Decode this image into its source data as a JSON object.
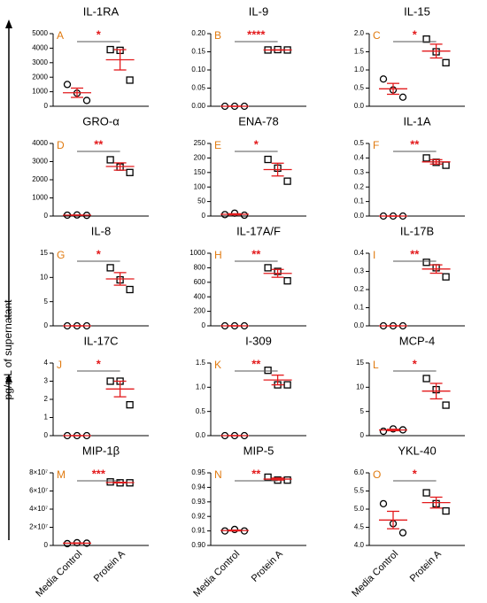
{
  "y_label": "pg/mL of supernatant",
  "chart_data": [
    {
      "type": "scatter",
      "title": "IL-1RA",
      "label": "A",
      "significance": "*",
      "values": [
        [
          1500,
          900,
          400
        ],
        [
          3900,
          3850,
          1800
        ]
      ],
      "mean": [
        930,
        3200
      ],
      "sem": [
        320,
        700
      ],
      "ylim": [
        0,
        5000
      ],
      "yticks": [
        0,
        1000,
        2000,
        3000,
        4000,
        5000
      ]
    },
    {
      "type": "scatter",
      "title": "IL-9",
      "label": "B",
      "significance": "****",
      "values": [
        [
          0,
          0,
          0
        ],
        [
          0.155,
          0.156,
          0.155
        ]
      ],
      "mean": [
        0,
        0.155
      ],
      "sem": [
        0,
        0.0003
      ],
      "ylim": [
        0,
        0.2
      ],
      "yticks": [
        {
          "value": 0,
          "label": "0.00"
        },
        {
          "value": 0.05,
          "label": "0.05"
        },
        {
          "value": 0.1,
          "label": "0.10"
        },
        {
          "value": 0.15,
          "label": "0.15"
        },
        {
          "value": 0.2,
          "label": "0.20"
        }
      ]
    },
    {
      "type": "scatter",
      "title": "IL-15",
      "label": "C",
      "significance": "*",
      "values": [
        [
          0.75,
          0.45,
          0.25
        ],
        [
          1.85,
          1.5,
          1.2
        ]
      ],
      "mean": [
        0.48,
        1.52
      ],
      "sem": [
        0.15,
        0.19
      ],
      "ylim": [
        0,
        2
      ],
      "yticks": [
        {
          "value": 0,
          "label": "0.0"
        },
        0.5,
        {
          "value": 1,
          "label": "1.0"
        },
        1.5,
        {
          "value": 2,
          "label": "2.0"
        }
      ]
    },
    {
      "type": "scatter",
      "title": "GRO-α",
      "label": "D",
      "significance": "**",
      "values": [
        [
          50,
          60,
          40
        ],
        [
          3100,
          2700,
          2400
        ]
      ],
      "mean": [
        50,
        2730
      ],
      "sem": [
        6,
        200
      ],
      "ylim": [
        0,
        4000
      ],
      "yticks": [
        0,
        1000,
        2000,
        3000,
        4000
      ]
    },
    {
      "type": "scatter",
      "title": "ENA-78",
      "label": "E",
      "significance": "*",
      "values": [
        [
          5,
          10,
          3
        ],
        [
          195,
          165,
          120
        ]
      ],
      "mean": [
        6,
        160
      ],
      "sem": [
        2,
        22
      ],
      "ylim": [
        0,
        250
      ],
      "yticks": [
        0,
        50,
        100,
        150,
        200,
        250
      ]
    },
    {
      "type": "scatter",
      "title": "IL-1A",
      "label": "F",
      "significance": "**",
      "values": [
        [
          0,
          0,
          0
        ],
        [
          0.4,
          0.37,
          0.35
        ]
      ],
      "mean": [
        0,
        0.373
      ],
      "sem": [
        0,
        0.015
      ],
      "ylim": [
        0,
        0.5
      ],
      "yticks": [
        {
          "value": 0,
          "label": "0.0"
        },
        0.1,
        0.2,
        0.3,
        0.4,
        0.5
      ]
    },
    {
      "type": "scatter",
      "title": "IL-8",
      "label": "G",
      "significance": "*",
      "values": [
        [
          0,
          0,
          0
        ],
        [
          12,
          9.5,
          7.5
        ]
      ],
      "mean": [
        0,
        9.7
      ],
      "sem": [
        0,
        1.3
      ],
      "ylim": [
        0,
        15
      ],
      "yticks": [
        0,
        5,
        10,
        15
      ]
    },
    {
      "type": "scatter",
      "title": "IL-17A/F",
      "label": "H",
      "significance": "**",
      "values": [
        [
          0,
          0,
          0
        ],
        [
          800,
          750,
          620
        ]
      ],
      "mean": [
        0,
        723
      ],
      "sem": [
        0,
        54
      ],
      "ylim": [
        0,
        1000
      ],
      "yticks": [
        0,
        200,
        400,
        600,
        800,
        1000
      ]
    },
    {
      "type": "scatter",
      "title": "IL-17B",
      "label": "I",
      "significance": "**",
      "values": [
        [
          0,
          0,
          0
        ],
        [
          0.35,
          0.32,
          0.27
        ]
      ],
      "mean": [
        0,
        0.313
      ],
      "sem": [
        0,
        0.023
      ],
      "ylim": [
        0,
        0.4
      ],
      "yticks": [
        {
          "value": 0,
          "label": "0.0"
        },
        0.1,
        0.2,
        0.3,
        0.4
      ]
    },
    {
      "type": "scatter",
      "title": "IL-17C",
      "label": "J",
      "significance": "*",
      "values": [
        [
          0,
          0,
          0
        ],
        [
          3,
          3,
          1.7
        ]
      ],
      "mean": [
        0,
        2.57
      ],
      "sem": [
        0,
        0.43
      ],
      "ylim": [
        0,
        4
      ],
      "yticks": [
        0,
        1,
        2,
        3,
        4
      ]
    },
    {
      "type": "scatter",
      "title": "I-309",
      "label": "K",
      "significance": "**",
      "values": [
        [
          0,
          0,
          0
        ],
        [
          1.35,
          1.05,
          1.05
        ]
      ],
      "mean": [
        0,
        1.15
      ],
      "sem": [
        0,
        0.1
      ],
      "ylim": [
        0,
        1.5
      ],
      "yticks": [
        {
          "value": 0,
          "label": "0.0"
        },
        0.5,
        {
          "value": 1,
          "label": "1.0"
        },
        1.5
      ]
    },
    {
      "type": "scatter",
      "title": "MCP-4",
      "label": "L",
      "significance": "*",
      "values": [
        [
          0.9,
          1.4,
          1.2
        ],
        [
          11.8,
          9.5,
          6.3
        ]
      ],
      "mean": [
        1.17,
        9.2
      ],
      "sem": [
        0.15,
        1.6
      ],
      "ylim": [
        0,
        15
      ],
      "yticks": [
        0,
        5,
        10,
        15
      ]
    },
    {
      "type": "scatter",
      "title": "MIP-1β",
      "label": "M",
      "significance": "***",
      "categories": [
        "Media Control",
        "Protein A"
      ],
      "values": [
        [
          2000000,
          3000000,
          2500000
        ],
        [
          70000000,
          69000000,
          69000000
        ]
      ],
      "mean": [
        2500000,
        69300000
      ],
      "sem": [
        300000,
        300000
      ],
      "ylim": [
        0,
        80000000
      ],
      "yticks": [
        0,
        {
          "value": 20000000,
          "label": "2×10⁷"
        },
        {
          "value": 40000000,
          "label": "4×10⁷"
        },
        {
          "value": 60000000,
          "label": "6×10⁷"
        },
        {
          "value": 80000000,
          "label": "8×10⁷"
        }
      ]
    },
    {
      "type": "scatter",
      "title": "MIP-5",
      "label": "N",
      "significance": "**",
      "categories": [
        "Media Control",
        "Protein A"
      ],
      "values": [
        [
          0.91,
          0.911,
          0.91
        ],
        [
          0.947,
          0.945,
          0.945
        ]
      ],
      "mean": [
        0.9103,
        0.9457
      ],
      "sem": [
        0.0003,
        0.0007
      ],
      "ylim": [
        0.9,
        0.95
      ],
      "yticks": [
        {
          "value": 0.9,
          "label": "0.90"
        },
        0.91,
        0.92,
        0.93,
        0.94,
        0.95
      ]
    },
    {
      "type": "scatter",
      "title": "YKL-40",
      "label": "O",
      "significance": "*",
      "categories": [
        "Media Control",
        "Protein A"
      ],
      "values": [
        [
          5.15,
          4.6,
          4.35
        ],
        [
          5.45,
          5.15,
          4.95
        ]
      ],
      "mean": [
        4.7,
        5.18
      ],
      "sem": [
        0.24,
        0.15
      ],
      "ylim": [
        4,
        6
      ],
      "yticks": [
        {
          "value": 4,
          "label": "4.0"
        },
        4.5,
        {
          "value": 5,
          "label": "5.0"
        },
        5.5,
        {
          "value": 6,
          "label": "6.0"
        }
      ]
    }
  ]
}
